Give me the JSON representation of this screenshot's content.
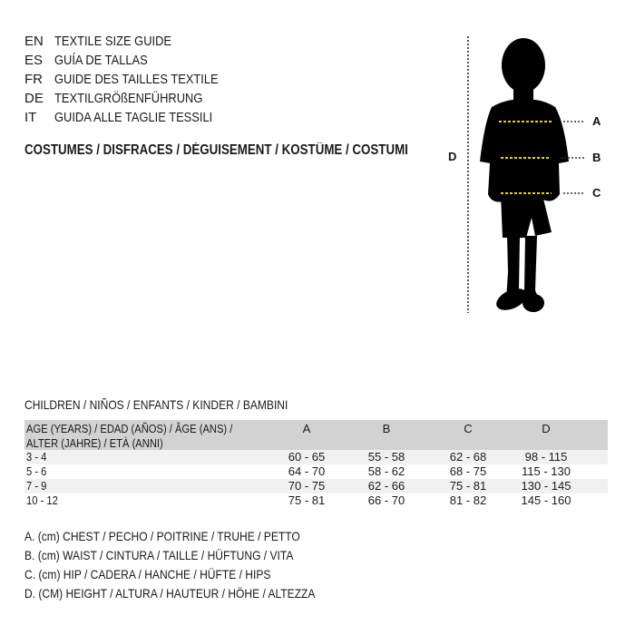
{
  "languages": [
    {
      "code": "EN",
      "text": "TEXTILE SIZE GUIDE"
    },
    {
      "code": "ES",
      "text": "GUÍA DE TALLAS"
    },
    {
      "code": "FR",
      "text": "GUIDE DES TAILLES TEXTILE"
    },
    {
      "code": "DE",
      "text": "TEXTILGRÖßENFÜHRUNG"
    },
    {
      "code": "IT",
      "text": "GUIDA ALLE TAGLIE TESSILI"
    }
  ],
  "category": "COSTUMES / DISFRACES / DÉGUISEMENT / KOSTÜME / COSTUMI",
  "figure": {
    "labels": {
      "a": "A",
      "b": "B",
      "c": "C",
      "d": "D"
    },
    "measure_line_color": "#e8d300"
  },
  "section": "CHILDREN / NIÑOS / ENFANTS / KINDER / BAMBINI",
  "table": {
    "age_header": [
      "AGE (YEARS) / EDAD (AÑOS) / ÂGE (ANS) /",
      "ALTER (JAHRE) / ETÀ (ANNI)"
    ],
    "columns": [
      "A",
      "B",
      "C",
      "D"
    ],
    "rows": [
      {
        "age": "3 - 4",
        "values": [
          "60 - 65",
          "55 - 58",
          "62 - 68",
          "98 - 115"
        ]
      },
      {
        "age": "5 - 6",
        "values": [
          "64 - 70",
          "58 - 62",
          "68 - 75",
          "115 - 130"
        ]
      },
      {
        "age": "7 - 9",
        "values": [
          "70 - 75",
          "62 - 66",
          "75 - 81",
          "130 - 145"
        ]
      },
      {
        "age": "10 - 12",
        "values": [
          "75 - 81",
          "66 - 70",
          "81 - 82",
          "145 - 160"
        ]
      }
    ]
  },
  "legend": [
    "A. (cm) CHEST / PECHO / POITRINE / TRUHE / PETTO",
    "B. (cm) WAIST / CINTURA / TAILLE / HÜFTUNG / VITA",
    "C. (cm) HIP / CADERA / HANCHE / HÜFTE / HIPS",
    "D. (CM) HEIGHT / ALTURA / HAUTEUR / HÖHE / ALTEZZA"
  ]
}
